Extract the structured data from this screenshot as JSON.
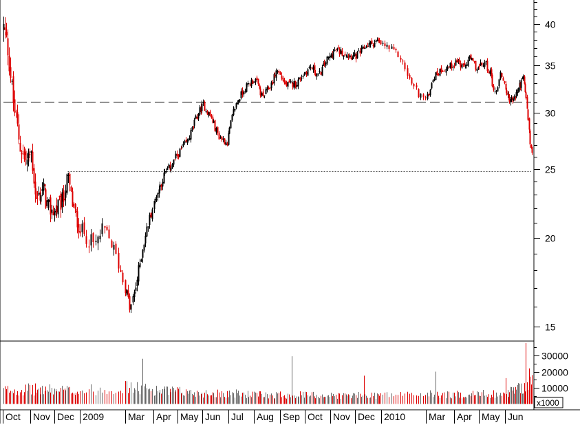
{
  "chart_data": {
    "type": "candlestick",
    "title": "",
    "price_axis": {
      "scale": "log",
      "ticks": [
        15,
        20,
        25,
        30,
        35,
        40
      ],
      "labels": [
        "15",
        "20",
        "25",
        "30",
        "35",
        "40"
      ],
      "ylim": [
        14.0,
        46.0
      ]
    },
    "volume_axis": {
      "ticks": [
        10000,
        20000,
        30000
      ],
      "labels": [
        "10000",
        "20000",
        "30000"
      ],
      "ylim": [
        0,
        38000
      ],
      "multiplier_label": "x1000"
    },
    "month_labels": [
      "Oct",
      "Nov",
      "Dec",
      "2009",
      "Mar",
      "Apr",
      "May",
      "Jun",
      "Jul",
      "Aug",
      "Sep",
      "Oct",
      "Nov",
      "Dec",
      "2010",
      "Mar",
      "Apr",
      "May",
      "Jun"
    ],
    "reference_lines": [
      {
        "price": 31.1,
        "style": "long-dash",
        "from_month": 0
      },
      {
        "price": 24.8,
        "style": "dotted",
        "from_month": 2.5
      }
    ],
    "close_path": [
      [
        0,
        39.5
      ],
      [
        0.15,
        37.0
      ],
      [
        0.35,
        31.0
      ],
      [
        0.6,
        27.0
      ],
      [
        0.85,
        25.5
      ],
      [
        1.0,
        26.5
      ],
      [
        1.2,
        22.5
      ],
      [
        1.5,
        23.5
      ],
      [
        1.7,
        22.0
      ],
      [
        2.0,
        21.8
      ],
      [
        2.3,
        22.6
      ],
      [
        2.5,
        24.3
      ],
      [
        2.7,
        22.0
      ],
      [
        3.0,
        20.5
      ],
      [
        3.3,
        19.5
      ],
      [
        3.5,
        20.6
      ],
      [
        3.7,
        19.5
      ],
      [
        3.95,
        17.3
      ],
      [
        4.15,
        15.8
      ],
      [
        4.35,
        17.2
      ],
      [
        4.6,
        19.5
      ],
      [
        4.9,
        21.8
      ],
      [
        5.1,
        23.0
      ],
      [
        5.4,
        24.5
      ],
      [
        5.7,
        25.3
      ],
      [
        6.0,
        26.3
      ],
      [
        6.4,
        27.5
      ],
      [
        6.8,
        30.0
      ],
      [
        7.0,
        30.8
      ],
      [
        7.3,
        29.5
      ],
      [
        7.6,
        27.8
      ],
      [
        7.9,
        27.2
      ],
      [
        8.2,
        30.5
      ],
      [
        8.6,
        32.5
      ],
      [
        9.0,
        33.5
      ],
      [
        9.3,
        31.5
      ],
      [
        9.6,
        32.8
      ],
      [
        9.85,
        34.5
      ],
      [
        10.2,
        32.8
      ],
      [
        10.6,
        33.0
      ],
      [
        10.9,
        34.0
      ],
      [
        11.2,
        34.8
      ],
      [
        11.5,
        33.8
      ],
      [
        11.8,
        35.5
      ],
      [
        12.2,
        36.8
      ],
      [
        12.6,
        36.3
      ],
      [
        13.0,
        36.0
      ],
      [
        13.4,
        37.3
      ],
      [
        13.8,
        37.8
      ],
      [
        14.1,
        37.2
      ],
      [
        14.4,
        36.0
      ],
      [
        14.6,
        33.5
      ],
      [
        14.8,
        32.0
      ],
      [
        15.0,
        31.3
      ],
      [
        15.2,
        33.5
      ],
      [
        15.5,
        34.5
      ],
      [
        15.9,
        35.0
      ],
      [
        16.1,
        35.6
      ],
      [
        16.3,
        34.6
      ],
      [
        16.6,
        35.8
      ],
      [
        16.9,
        34.6
      ],
      [
        17.2,
        35.3
      ],
      [
        17.4,
        34.0
      ],
      [
        17.6,
        31.8
      ],
      [
        17.8,
        34.2
      ],
      [
        18.1,
        31.5
      ],
      [
        18.4,
        31.2
      ],
      [
        18.7,
        32.8
      ],
      [
        18.9,
        33.5
      ],
      [
        19.1,
        30.5
      ],
      [
        19.25,
        27.0
      ],
      [
        19.35,
        26.3
      ]
    ],
    "volume_envelope": [
      [
        0,
        9000
      ],
      [
        1,
        9500
      ],
      [
        2,
        9000
      ],
      [
        3,
        8500
      ],
      [
        4,
        11000
      ],
      [
        5,
        9000
      ],
      [
        6,
        8000
      ],
      [
        7,
        7000
      ],
      [
        8,
        7000
      ],
      [
        9,
        6000
      ],
      [
        10,
        6000
      ],
      [
        11,
        6000
      ],
      [
        12,
        5500
      ],
      [
        13,
        5500
      ],
      [
        14,
        6000
      ],
      [
        15,
        6500
      ],
      [
        16,
        6000
      ],
      [
        17,
        6500
      ],
      [
        18,
        7000
      ],
      [
        19,
        12000
      ],
      [
        19.35,
        14000
      ]
    ],
    "volume_spikes": [
      {
        "month": 4.6,
        "value": 28000
      },
      {
        "month": 10.45,
        "value": 29500
      },
      {
        "month": 13.3,
        "value": 17500
      },
      {
        "month": 15.3,
        "value": 20000
      },
      {
        "month": 18.0,
        "value": 16000
      },
      {
        "month": 19.05,
        "value": 38000
      },
      {
        "month": 19.2,
        "value": 22000
      }
    ],
    "up_color": "#000000",
    "down_color": "#dd0000",
    "volume_up_color": "#666666",
    "volume_down_color": "#dd0000",
    "grid": false,
    "legend": "none"
  }
}
